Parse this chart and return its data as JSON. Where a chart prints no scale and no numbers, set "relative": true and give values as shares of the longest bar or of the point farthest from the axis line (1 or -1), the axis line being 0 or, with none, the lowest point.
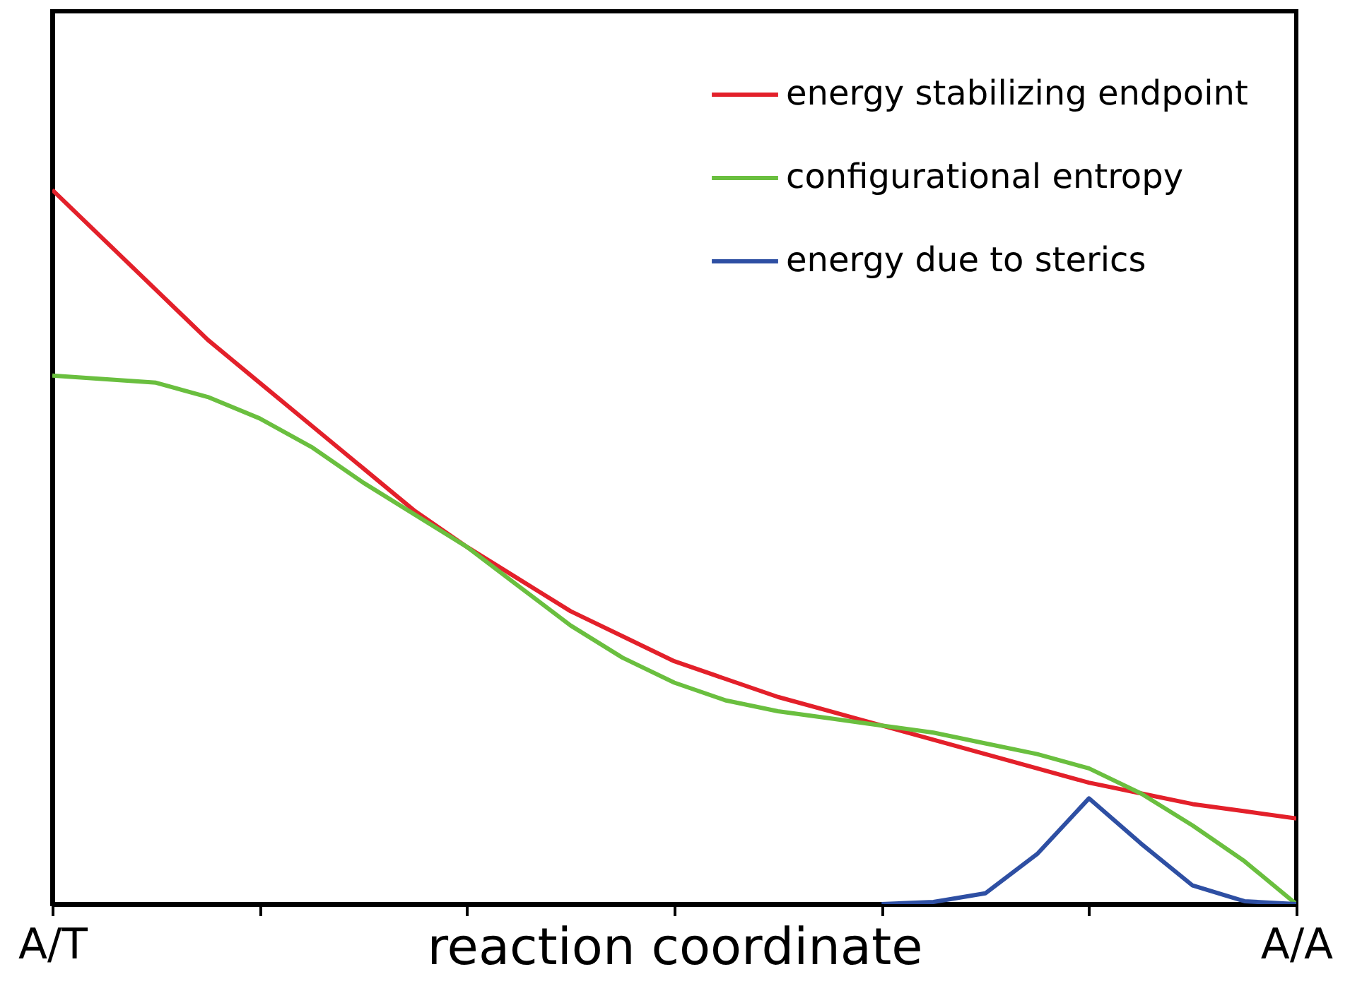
{
  "chart_data": {
    "type": "line",
    "relative": true,
    "xlabel": "reaction coordinate",
    "categories": [
      "A/T",
      null,
      null,
      null,
      null,
      null,
      null,
      null,
      null,
      null,
      null,
      null,
      null,
      null,
      null,
      null,
      null,
      null,
      null,
      null,
      null,
      null,
      null,
      null,
      "A/A"
    ],
    "legend": "top right",
    "grid": false,
    "marker": "none",
    "line_style": "solid",
    "series": [
      {
        "name": "energy stabilizing endpoint",
        "color": "#e3202a",
        "values": [
          1.0,
          0.93,
          0.86,
          0.79,
          0.73,
          0.67,
          0.61,
          0.55,
          0.5,
          0.455,
          0.41,
          0.375,
          0.34,
          0.315,
          0.29,
          0.27,
          0.25,
          0.23,
          0.21,
          0.19,
          0.17,
          0.155,
          0.14,
          0.13,
          0.12
        ]
      },
      {
        "name": "configurational entropy",
        "color": "#6abf3f",
        "values": [
          0.74,
          0.735,
          0.73,
          0.71,
          0.68,
          0.64,
          0.59,
          0.545,
          0.5,
          0.445,
          0.39,
          0.345,
          0.31,
          0.285,
          0.27,
          0.26,
          0.25,
          0.24,
          0.225,
          0.21,
          0.19,
          0.155,
          0.11,
          0.06,
          0.0
        ]
      },
      {
        "name": "energy due to sterics",
        "color": "#2e4fa3",
        "values": [
          null,
          null,
          null,
          null,
          null,
          null,
          null,
          null,
          null,
          null,
          null,
          null,
          null,
          null,
          null,
          null,
          0.0,
          0.003,
          0.015,
          0.07,
          0.148,
          0.085,
          0.026,
          0.004,
          0.0
        ]
      }
    ]
  }
}
